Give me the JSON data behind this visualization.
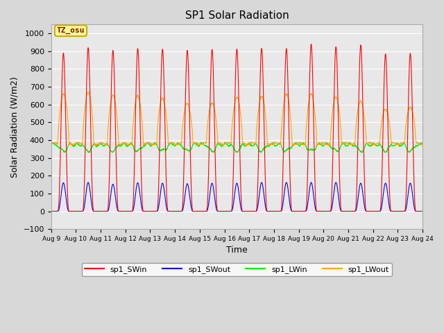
{
  "title": "SP1 Solar Radiation",
  "xlabel": "Time",
  "ylabel": "Solar Radiation (W/m2)",
  "ylim": [
    -100,
    1050
  ],
  "tick_labels": [
    "Aug 9",
    "Aug 10",
    "Aug 11",
    "Aug 12",
    "Aug 13",
    "Aug 14",
    "Aug 15",
    "Aug 16",
    "Aug 17",
    "Aug 18",
    "Aug 19",
    "Aug 20",
    "Aug 21",
    "Aug 22",
    "Aug 23",
    "Aug 24"
  ],
  "color_SWin": "#FF0000",
  "color_SWout": "#0000EE",
  "color_LWin": "#00EE00",
  "color_LWout": "#FFA500",
  "bg_color": "#D8D8D8",
  "plot_bg": "#E8E8E8",
  "grid_color": "#FFFFFF",
  "annotation_text": "TZ_osu",
  "annotation_color": "#8B0000",
  "annotation_bg": "#FFFF99",
  "annotation_border": "#CCAA00",
  "legend_labels": [
    "sp1_SWin",
    "sp1_SWout",
    "sp1_LWin",
    "sp1_LWout"
  ],
  "n_days": 15,
  "SWin_peaks": [
    890,
    920,
    905,
    915,
    912,
    905,
    910,
    912,
    916,
    915,
    940,
    925,
    935,
    885,
    888
  ],
  "SWout_peaks": [
    160,
    162,
    152,
    160,
    158,
    155,
    158,
    158,
    162,
    162,
    162,
    162,
    158,
    158,
    158
  ],
  "LWin_night": 375,
  "LWin_day_dip": 35,
  "LWout_night": 380,
  "LWout_peaks": [
    660,
    665,
    648,
    648,
    637,
    610,
    614,
    643,
    645,
    656,
    655,
    640,
    620,
    577,
    590
  ],
  "points_per_day": 144
}
